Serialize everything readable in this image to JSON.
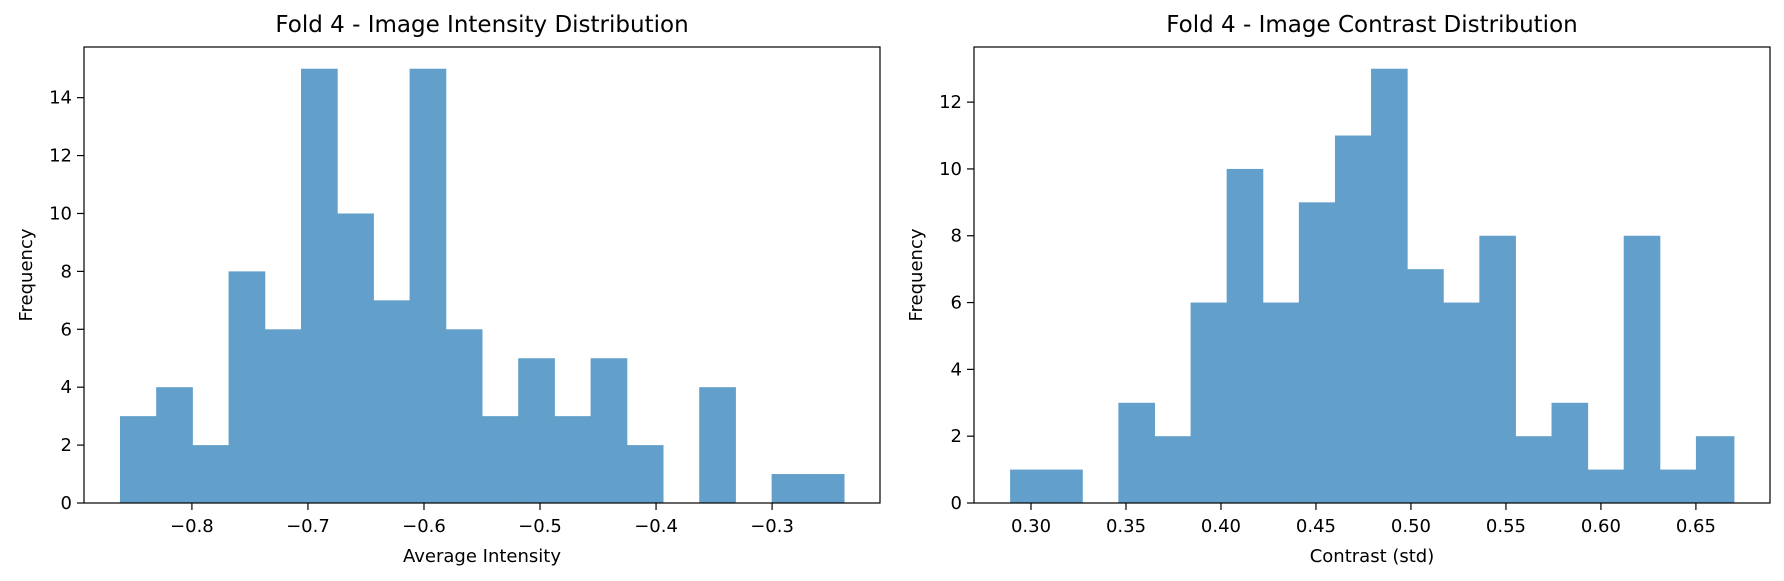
{
  "colors": {
    "bar": "#62a0cb",
    "axis": "#000000",
    "background": "#ffffff"
  },
  "chart_data": [
    {
      "type": "bar",
      "title": "Fold 4 - Image Intensity Distribution",
      "xlabel": "Average Intensity",
      "ylabel": "Frequency",
      "xlim": [
        -0.893,
        -0.207
      ],
      "ylim": [
        0,
        15.75
      ],
      "xticks": [
        -0.8,
        -0.7,
        -0.6,
        -0.5,
        -0.4,
        -0.3
      ],
      "xtick_labels": [
        "−0.8",
        "−0.7",
        "−0.6",
        "−0.5",
        "−0.4",
        "−0.3"
      ],
      "yticks": [
        0,
        2,
        4,
        6,
        8,
        10,
        12,
        14
      ],
      "ytick_labels": [
        "0",
        "2",
        "4",
        "6",
        "8",
        "10",
        "12",
        "14"
      ],
      "bin_edges": [
        -0.862,
        -0.8308,
        -0.7996,
        -0.7684,
        -0.7372,
        -0.706,
        -0.6748,
        -0.6436,
        -0.6124,
        -0.5812,
        -0.55,
        -0.5188,
        -0.4876,
        -0.4564,
        -0.4252,
        -0.394,
        -0.3628,
        -0.3316,
        -0.3004,
        -0.2692,
        -0.238
      ],
      "values": [
        3,
        4,
        2,
        8,
        6,
        15,
        10,
        7,
        15,
        6,
        3,
        5,
        3,
        5,
        2,
        0,
        4,
        0,
        1,
        1
      ],
      "grid": false,
      "legend": "none"
    },
    {
      "type": "bar",
      "title": "Fold 4 - Image Contrast Distribution",
      "xlabel": "Contrast (std)",
      "ylabel": "Frequency",
      "xlim": [
        0.27,
        0.689
      ],
      "ylim": [
        0,
        13.65
      ],
      "xticks": [
        0.3,
        0.35,
        0.4,
        0.45,
        0.5,
        0.55,
        0.6,
        0.65
      ],
      "xtick_labels": [
        "0.30",
        "0.35",
        "0.40",
        "0.45",
        "0.50",
        "0.55",
        "0.60",
        "0.65"
      ],
      "yticks": [
        0,
        2,
        4,
        6,
        8,
        10,
        12
      ],
      "ytick_labels": [
        "0",
        "2",
        "4",
        "6",
        "8",
        "10",
        "12"
      ],
      "bin_edges": [
        0.289,
        0.308,
        0.327,
        0.346,
        0.365,
        0.384,
        0.403,
        0.422,
        0.441,
        0.46,
        0.479,
        0.498,
        0.517,
        0.536,
        0.555,
        0.574,
        0.593,
        0.612,
        0.631,
        0.65,
        0.67
      ],
      "values": [
        1,
        1,
        0,
        3,
        2,
        6,
        10,
        6,
        9,
        11,
        13,
        7,
        6,
        8,
        2,
        3,
        1,
        8,
        1,
        2
      ],
      "grid": false,
      "legend": "none"
    }
  ]
}
